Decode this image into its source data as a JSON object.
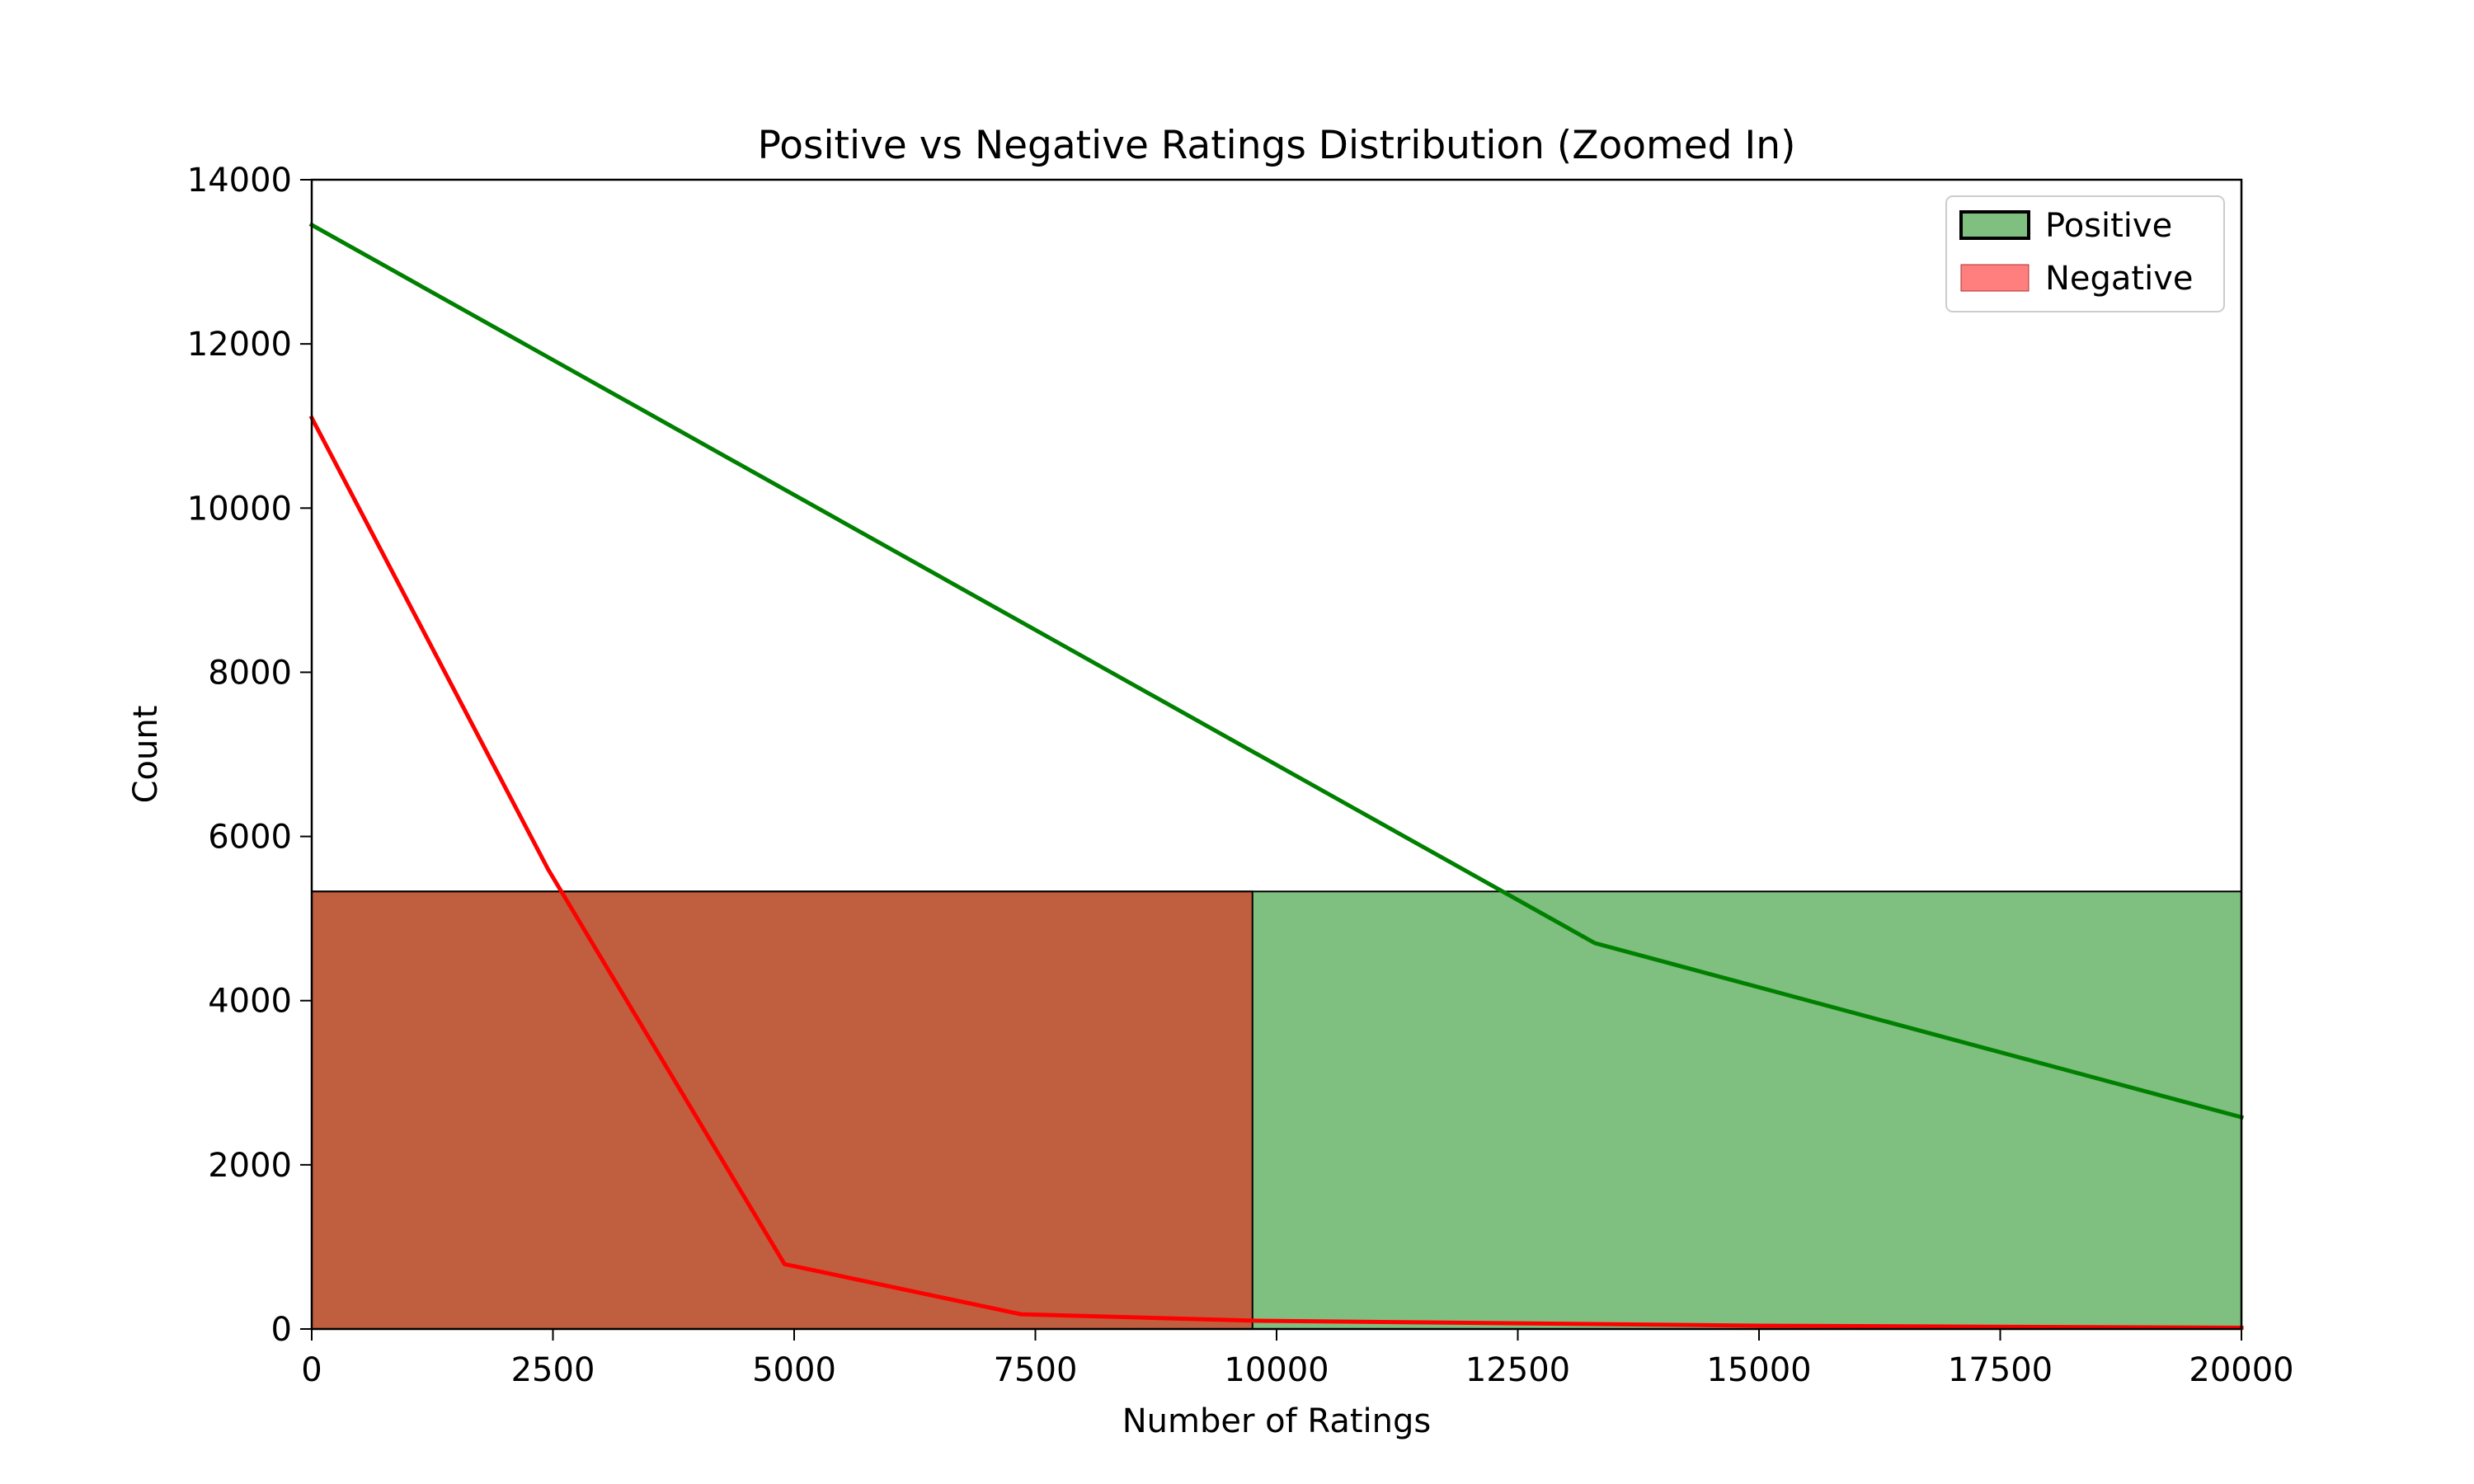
{
  "chart_data": {
    "type": "area",
    "title": "Positive vs Negative Ratings Distribution (Zoomed In)",
    "xlabel": "Number of Ratings",
    "ylabel": "Count",
    "xlim": [
      0,
      20000
    ],
    "ylim": [
      0,
      14000
    ],
    "x_ticks": [
      "0",
      "2500",
      "5000",
      "7500",
      "10000",
      "12500",
      "15000",
      "17500",
      "20000"
    ],
    "y_ticks": [
      "0",
      "2000",
      "4000",
      "6000",
      "8000",
      "10000",
      "12000",
      "14000"
    ],
    "legend": {
      "position": "top-right",
      "entries": [
        "Positive",
        "Negative"
      ]
    },
    "histograms": [
      {
        "series": "Positive",
        "color": "#008000",
        "alpha": 0.5,
        "bins": [
          [
            0,
            20000,
            5330
          ]
        ]
      },
      {
        "series": "Negative",
        "color": "#ff0000",
        "alpha": 0.5,
        "bins": [
          [
            0,
            9750,
            5330
          ]
        ]
      }
    ],
    "kde_lines": [
      {
        "series": "Positive",
        "color": "#008000",
        "points": [
          [
            0,
            13450
          ],
          [
            13300,
            4700
          ],
          [
            20000,
            2580
          ]
        ]
      },
      {
        "series": "Negative",
        "color": "#ff0000",
        "points": [
          [
            0,
            11100
          ],
          [
            2450,
            5600
          ],
          [
            4900,
            790
          ],
          [
            7350,
            180
          ],
          [
            9800,
            100
          ],
          [
            15000,
            40
          ],
          [
            20000,
            15
          ]
        ]
      }
    ],
    "grid": false
  }
}
